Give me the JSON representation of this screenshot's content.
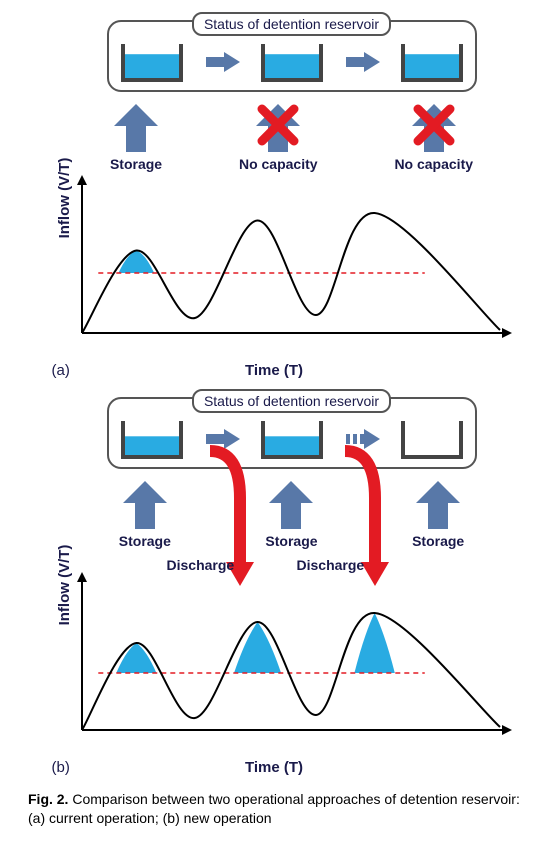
{
  "colors": {
    "water": "#29abe2",
    "arrow_blue": "#5878a8",
    "arrow_red": "#e31b23",
    "x_red": "#e31b23",
    "tank_stroke": "#444444",
    "axis_stroke": "#000000",
    "curve_stroke": "#000000",
    "threshold_red": "#e31b23",
    "text_navy": "#1a1a4a",
    "fill_blue": "#29abe2"
  },
  "panel_a": {
    "ylabel": "Inflow (V/T)",
    "xlabel": "Time (T)",
    "letter": "(a)",
    "status_title": "Status of detention reservoir",
    "tanks": [
      {
        "fill_level": 0.7
      },
      {
        "fill_level": 0.7
      },
      {
        "fill_level": 0.7
      }
    ],
    "between_arrows": [
      "solid",
      "solid"
    ],
    "uparrows": [
      {
        "label": "Storage",
        "crossed": false
      },
      {
        "label": "No capacity",
        "crossed": true
      },
      {
        "label": "No capacity",
        "crossed": true
      }
    ],
    "curve": {
      "type": "three-wave-inflow",
      "threshold_y": 0.4,
      "peak_heights": [
        0.55,
        0.75,
        0.8
      ],
      "trough_heights": [
        0.1,
        0.12
      ],
      "peak_x": [
        0.13,
        0.42,
        0.7
      ],
      "trough_x": [
        0.27,
        0.56
      ],
      "tail_end_x": 1.0,
      "fill_peaks": [
        0
      ],
      "line_width": 2
    }
  },
  "panel_b": {
    "ylabel": "Inflow (V/T)",
    "xlabel": "Time (T)",
    "letter": "(b)",
    "status_title": "Status of detention reservoir",
    "tanks": [
      {
        "fill_level": 0.55
      },
      {
        "fill_level": 0.55
      },
      {
        "fill_level": 0.0
      }
    ],
    "between_arrows": [
      "solid",
      "dashed"
    ],
    "uparrows": [
      {
        "label": "Storage",
        "crossed": false
      },
      {
        "label": "Storage",
        "crossed": false
      },
      {
        "label": "Storage",
        "crossed": false
      }
    ],
    "discharge_labels": [
      "Discharge",
      "Discharge"
    ],
    "curve": {
      "type": "three-wave-inflow",
      "threshold_y": 0.38,
      "peak_heights": [
        0.58,
        0.72,
        0.78
      ],
      "trough_heights": [
        0.08,
        0.1
      ],
      "peak_x": [
        0.13,
        0.42,
        0.7
      ],
      "trough_x": [
        0.27,
        0.56
      ],
      "tail_end_x": 1.0,
      "fill_peaks": [
        0,
        1,
        2
      ],
      "line_width": 2
    }
  },
  "caption": {
    "label": "Fig. 2.",
    "text": "Comparison between two operational approaches of detention reservoir: (a) current operation; (b) new operation"
  }
}
